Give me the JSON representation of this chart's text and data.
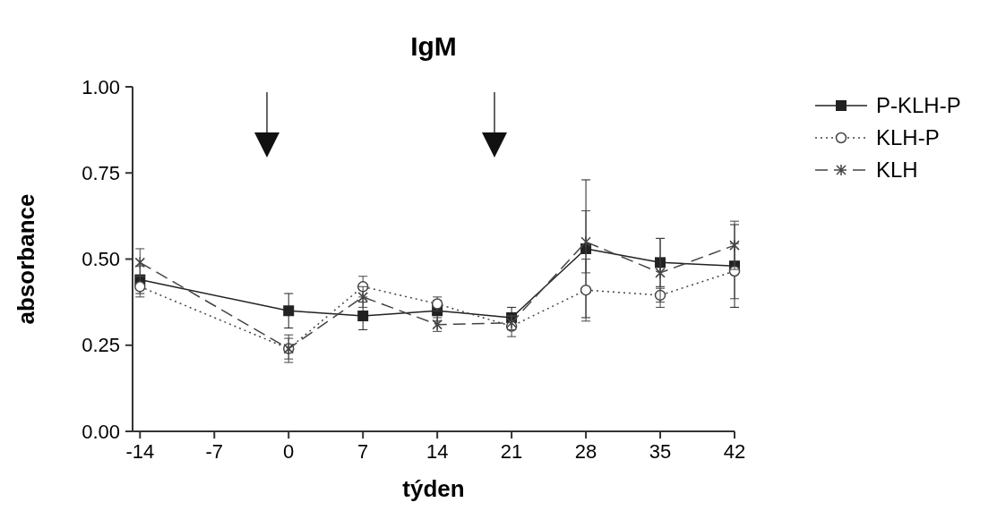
{
  "chart_data": {
    "type": "line",
    "title": "IgM",
    "xlabel": "týden",
    "ylabel": "absorbance",
    "x": [
      -14,
      0,
      7,
      14,
      21,
      28,
      35,
      42
    ],
    "xlim": [
      -14.7,
      42
    ],
    "xticks": [
      -14,
      -7,
      0,
      7,
      14,
      21,
      28,
      35,
      42
    ],
    "ylim": [
      0,
      1
    ],
    "yticks": [
      {
        "value": 0,
        "label": "0.00"
      },
      {
        "value": 0.25,
        "label": "0.25"
      },
      {
        "value": 0.5,
        "label": "0.50"
      },
      {
        "value": 0.75,
        "label": "0.75"
      },
      {
        "value": 1,
        "label": "1.00"
      }
    ],
    "grid": false,
    "legend": "top right",
    "series": [
      {
        "name": "P-KLH-P",
        "color": "#222222",
        "marker": "square",
        "line_style": "solid",
        "values": [
          0.44,
          0.35,
          0.335,
          0.35,
          0.33,
          0.53,
          0.49,
          0.48
        ],
        "errors": [
          0.04,
          0.05,
          0.04,
          0.03,
          0.03,
          0.2,
          0.07,
          0.12
        ]
      },
      {
        "name": "KLH-P",
        "color": "#444444",
        "marker": "circle",
        "line_style": "dotted",
        "values": [
          0.42,
          0.24,
          0.42,
          0.37,
          0.305,
          0.41,
          0.395,
          0.465
        ],
        "errors": [
          0.03,
          0.04,
          0.03,
          0.02,
          0.03,
          0.09,
          0.02,
          0.08
        ]
      },
      {
        "name": "KLH",
        "color": "#444444",
        "marker": "cross",
        "line_style": "dashed",
        "values": [
          0.49,
          0.24,
          0.39,
          0.31,
          0.315,
          0.55,
          0.46,
          0.54
        ],
        "errors": [
          0.04,
          0.03,
          0.03,
          0.02,
          0.02,
          0.09,
          0.1,
          0.07
        ]
      }
    ]
  }
}
